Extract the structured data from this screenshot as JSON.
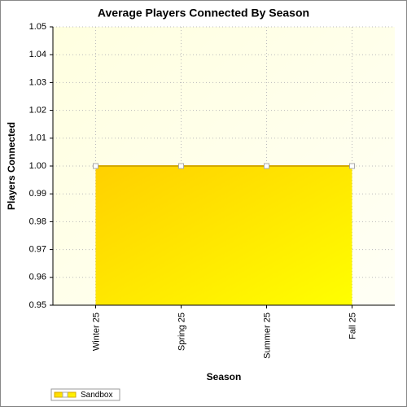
{
  "chart_data": {
    "type": "area",
    "title": "Average Players Connected By Season",
    "x_label": "Season",
    "y_label": "Players Connected",
    "categories": [
      "Winter 25",
      "Spring 25",
      "Summer 25",
      "Fall 25"
    ],
    "series": [
      {
        "name": "Sandbox",
        "color": "#d4a900",
        "values": [
          1,
          1,
          1,
          1
        ]
      }
    ],
    "ylim": [
      0.95,
      1.05
    ],
    "yticks": [
      0.95,
      0.96,
      0.97,
      0.98,
      0.99,
      {
        "value": 1,
        "label": "1.00"
      },
      1.01,
      1.02,
      1.03,
      1.04,
      1.05
    ],
    "grid": true,
    "legend": "bottom-left"
  }
}
